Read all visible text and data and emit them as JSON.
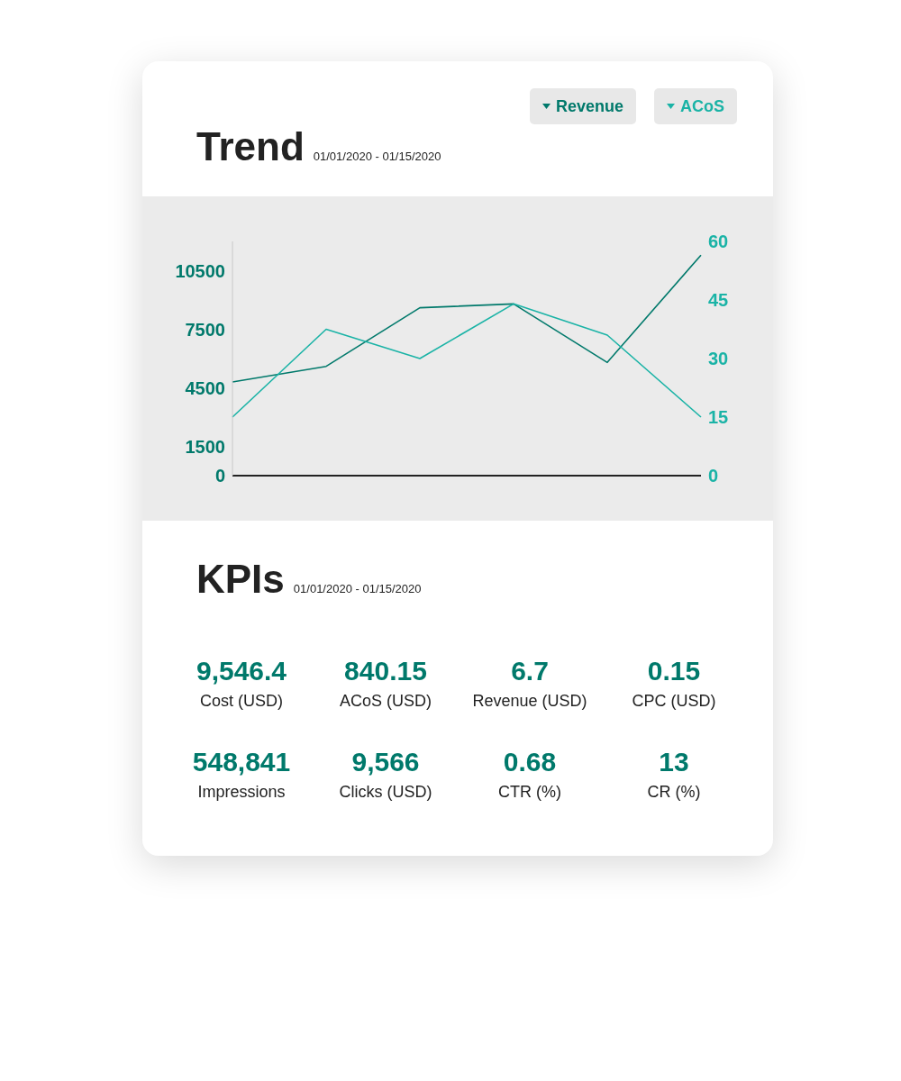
{
  "chart_data": [
    {
      "type": "line",
      "title": "Trend",
      "subtitle": "01/01/2020 - 01/15/2020",
      "categories": [
        null,
        null,
        null,
        null,
        null,
        null
      ],
      "series": [
        {
          "name": "Revenue",
          "color": "#00796b",
          "values": [
            4800,
            5600,
            8600,
            8800,
            5800,
            11300
          ]
        },
        {
          "name": "ACoS",
          "color": "#1ab3a6",
          "axis": "y2",
          "values": [
            15,
            37.5,
            30,
            44,
            36,
            15
          ]
        }
      ],
      "ylim": [
        0,
        12000
      ],
      "yticks": [
        0,
        1500,
        4500,
        7500,
        10500
      ],
      "y2lim": [
        0,
        60
      ],
      "y2ticks": [
        0,
        15,
        30,
        45,
        60
      ],
      "grid": false,
      "legend": "top right",
      "marker": "none",
      "line_style": "solid"
    },
    {
      "type": "other",
      "title": "KPIs",
      "subtitle": "01/01/2020 - 01/15/2020",
      "categories": [
        "Cost (USD)",
        "ACoS (USD)",
        "Revenue (USD)",
        "CPC (USD)",
        "Impressions",
        "Clicks (USD)",
        "CTR (%)",
        "CR (%)"
      ],
      "value_labels": [
        "9,546.4",
        "840.15",
        "6.7",
        "0.15",
        "548,841",
        "9,566",
        "0.68",
        "13"
      ],
      "color": "#00796b"
    }
  ]
}
